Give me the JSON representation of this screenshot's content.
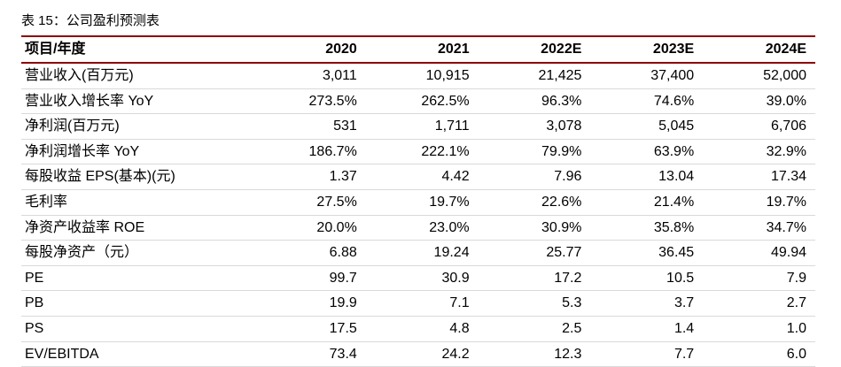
{
  "caption": "表 15：公司盈利预测表",
  "table": {
    "headers": [
      "项目/年度",
      "2020",
      "2021",
      "2022E",
      "2023E",
      "2024E"
    ],
    "rows": [
      {
        "label": "营业收入(百万元)",
        "values": [
          "3,011",
          "10,915",
          "21,425",
          "37,400",
          "52,000"
        ]
      },
      {
        "label": "营业收入增长率 YoY",
        "values": [
          "273.5%",
          "262.5%",
          "96.3%",
          "74.6%",
          "39.0%"
        ]
      },
      {
        "label": "净利润(百万元)",
        "values": [
          "531",
          "1,711",
          "3,078",
          "5,045",
          "6,706"
        ]
      },
      {
        "label": "净利润增长率 YoY",
        "values": [
          "186.7%",
          "222.1%",
          "79.9%",
          "63.9%",
          "32.9%"
        ]
      },
      {
        "label": "每股收益 EPS(基本)(元)",
        "values": [
          "1.37",
          "4.42",
          "7.96",
          "13.04",
          "17.34"
        ]
      },
      {
        "label": "毛利率",
        "values": [
          "27.5%",
          "19.7%",
          "22.6%",
          "21.4%",
          "19.7%"
        ]
      },
      {
        "label": "净资产收益率 ROE",
        "values": [
          "20.0%",
          "23.0%",
          "30.9%",
          "35.8%",
          "34.7%"
        ]
      },
      {
        "label": "每股净资产（元）",
        "values": [
          "6.88",
          "19.24",
          "25.77",
          "36.45",
          "49.94"
        ]
      },
      {
        "label": "PE",
        "values": [
          "99.7",
          "30.9",
          "17.2",
          "10.5",
          "7.9"
        ]
      },
      {
        "label": "PB",
        "values": [
          "19.9",
          "7.1",
          "5.3",
          "3.7",
          "2.7"
        ]
      },
      {
        "label": "PS",
        "values": [
          "17.5",
          "4.8",
          "2.5",
          "1.4",
          "1.0"
        ]
      },
      {
        "label": "EV/EBITDA",
        "values": [
          "73.4",
          "24.2",
          "12.3",
          "7.7",
          "6.0"
        ]
      }
    ]
  },
  "colors": {
    "rule": "#8b0000",
    "row_divider": "#d9d9d9"
  }
}
